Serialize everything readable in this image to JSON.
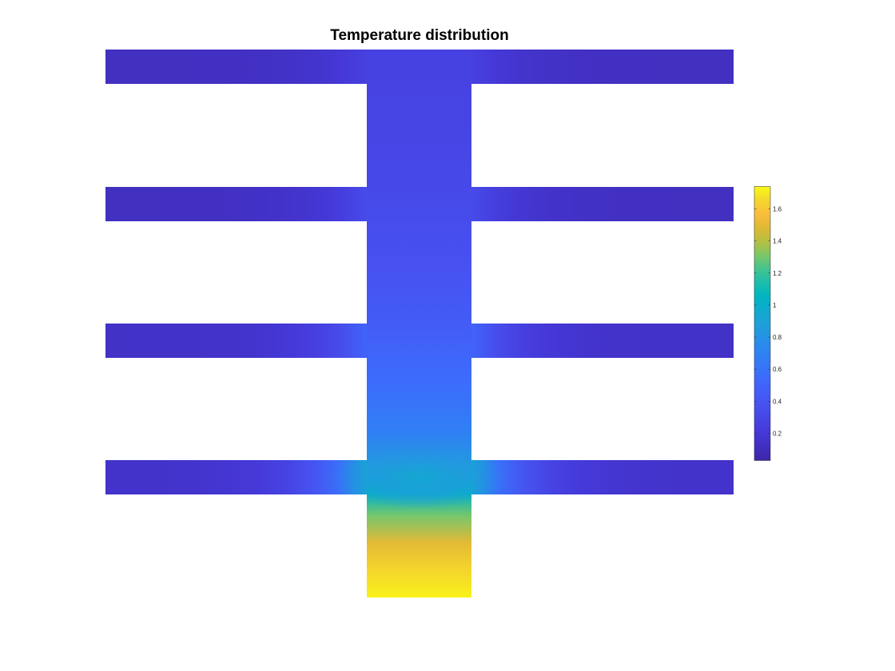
{
  "chart_data": {
    "type": "heatmap",
    "title": "Temperature distribution",
    "xlabel": "",
    "ylabel": "",
    "colormap": "parula",
    "colorbar": {
      "clim": [
        0.03,
        1.74
      ],
      "ticks": [
        0.2,
        0.4,
        0.6,
        0.8,
        1.0,
        1.2,
        1.4,
        1.6
      ],
      "tick_labels": [
        "0.2",
        "0.4",
        "0.6",
        "0.8",
        "1",
        "1.2",
        "1.4",
        "1.6"
      ]
    },
    "geometry": "vertical stem with four horizontal fins",
    "stem_temperature_profile": {
      "position_from_bottom": [
        0.0,
        0.05,
        0.1,
        0.15,
        0.19,
        0.25,
        0.3,
        0.4,
        0.5,
        0.6,
        0.75,
        0.9,
        1.0
      ],
      "temperature": [
        1.72,
        1.65,
        1.5,
        1.3,
        1.05,
        0.82,
        0.68,
        0.55,
        0.45,
        0.38,
        0.32,
        0.28,
        0.26
      ]
    },
    "fins": [
      {
        "name": "top fin",
        "root_temperature": 0.26,
        "tip_temperature": 0.12
      },
      {
        "name": "second fin",
        "root_temperature": 0.33,
        "tip_temperature": 0.12
      },
      {
        "name": "third fin",
        "root_temperature": 0.5,
        "tip_temperature": 0.14
      },
      {
        "name": "bottom fin",
        "root_temperature": 0.95,
        "tip_temperature": 0.15
      }
    ]
  }
}
